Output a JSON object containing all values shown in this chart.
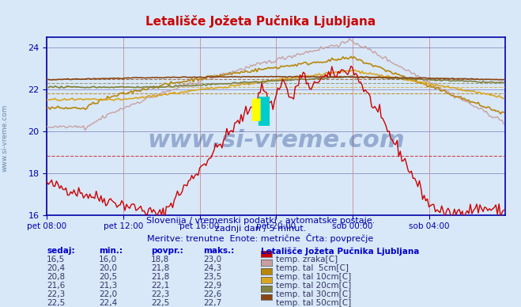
{
  "title": "Letališče Jožeta Pučnika Ljubljana",
  "background_color": "#d8e8f8",
  "plot_bg_color": "#d8e8f8",
  "subtitle1": "Slovenija / vremenski podatki - avtomatske postaje.",
  "subtitle2": "zadnji dan / 5 minut.",
  "subtitle3": "Meritve: trenutne  Enote: metrične  Črta: povprečje",
  "watermark": "www.si-vreme.com",
  "xlabel_ticks": [
    "pet 08:00",
    "pet 12:00",
    "pet 16:00",
    "pet 20:00",
    "sob 00:00",
    "sob 04:00"
  ],
  "ylim": [
    16,
    24.5
  ],
  "yticks": [
    16,
    18,
    20,
    22,
    24
  ],
  "xlim": [
    0,
    288
  ],
  "x_tick_positions": [
    0,
    48,
    96,
    144,
    192,
    240
  ],
  "grid_color": "#cc9999",
  "grid_color2": "#9999cc",
  "axis_color": "#0000aa",
  "series": {
    "temp_zraka": {
      "color": "#cc0000",
      "avg": 18.8,
      "min": 16.0,
      "max": 23.0,
      "current": 16.5
    },
    "temp_tal_5cm": {
      "color": "#c8a0a0",
      "avg": 21.8,
      "min": 20.0,
      "max": 24.3,
      "current": 20.4
    },
    "temp_tal_10cm": {
      "color": "#b8860b",
      "avg": 21.8,
      "min": 20.5,
      "max": 23.5,
      "current": 20.8
    },
    "temp_tal_20cm": {
      "color": "#daa520",
      "avg": 22.1,
      "min": 21.3,
      "max": 22.9,
      "current": 21.6
    },
    "temp_tal_30cm": {
      "color": "#808040",
      "avg": 22.3,
      "min": 22.0,
      "max": 22.6,
      "current": 22.3
    },
    "temp_tal_50cm": {
      "color": "#8b4513",
      "avg": 22.5,
      "min": 22.4,
      "max": 22.7,
      "current": 22.5
    }
  },
  "legend_colors": {
    "temp. zraka[C]": "#cc0000",
    "temp. tal  5cm[C]": "#c8a0a0",
    "temp. tal 10cm[C]": "#b8860b",
    "temp. tal 20cm[C]": "#daa520",
    "temp. tal 30cm[C]": "#808040",
    "temp. tal 50cm[C]": "#8b4513"
  },
  "table_data": [
    {
      "sedaj": "16,5",
      "min": "16,0",
      "povpr": "18,8",
      "maks": "23,0"
    },
    {
      "sedaj": "20,4",
      "min": "20,0",
      "povpr": "21,8",
      "maks": "24,3"
    },
    {
      "sedaj": "20,8",
      "min": "20,5",
      "povpr": "21,8",
      "maks": "23,5"
    },
    {
      "sedaj": "21,6",
      "min": "21,3",
      "povpr": "22,1",
      "maks": "22,9"
    },
    {
      "sedaj": "22,3",
      "min": "22,0",
      "povpr": "22,3",
      "maks": "22,6"
    },
    {
      "sedaj": "22,5",
      "min": "22,4",
      "povpr": "22,5",
      "maks": "22,7"
    }
  ]
}
